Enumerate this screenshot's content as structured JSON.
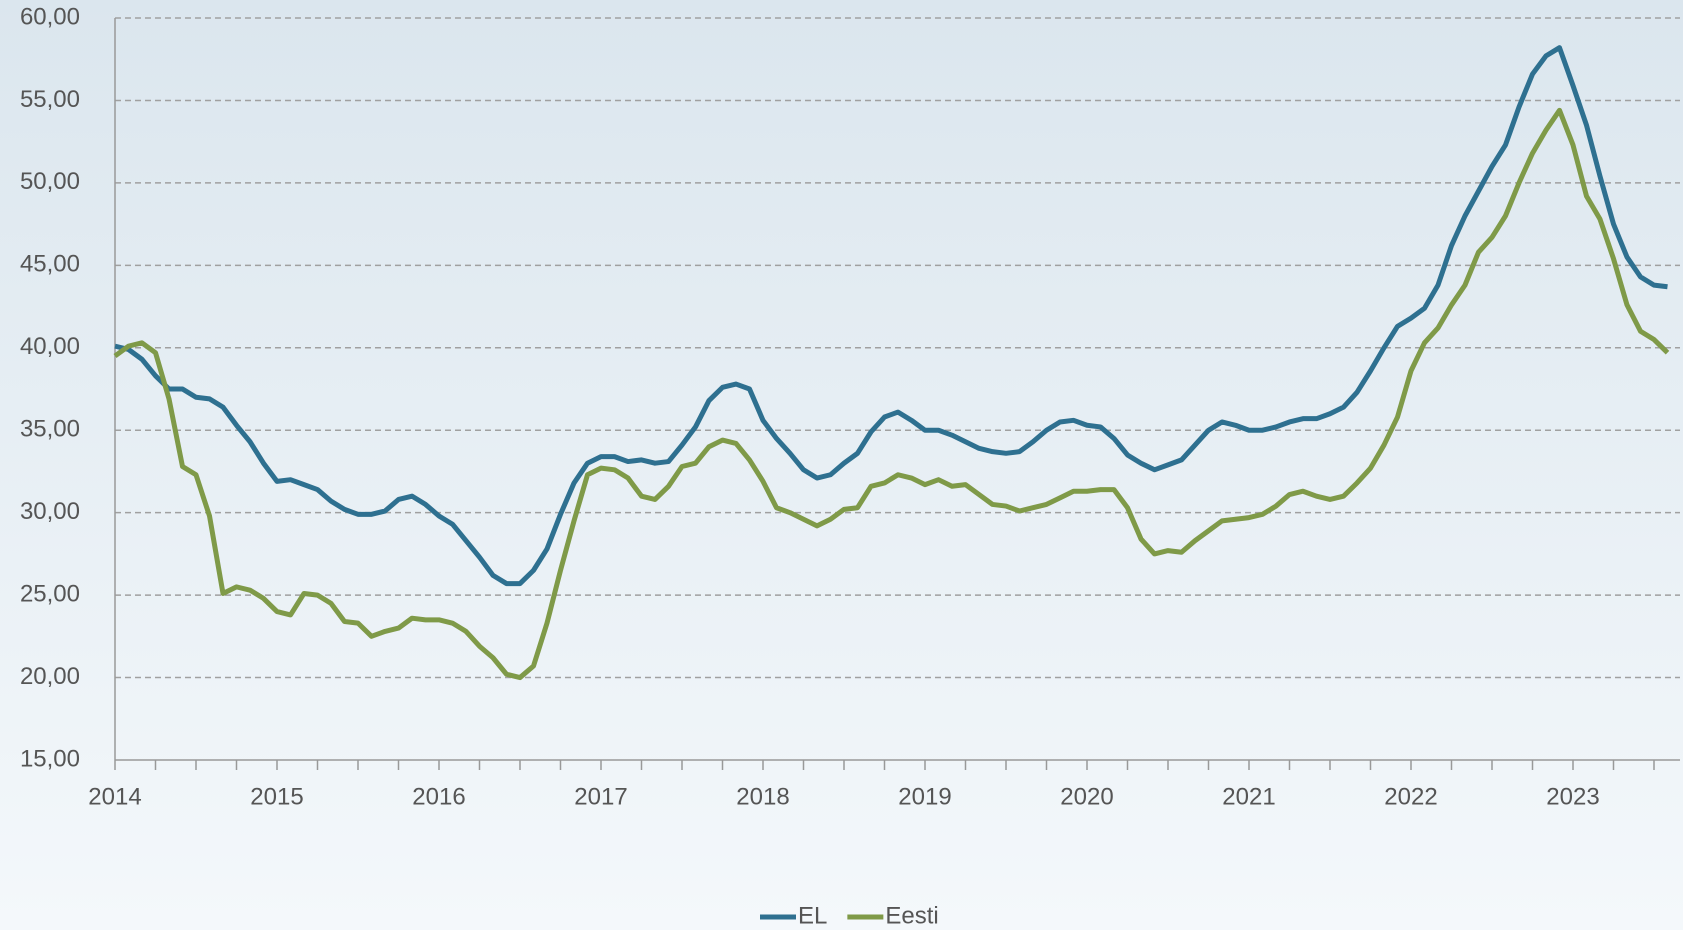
{
  "chart_data": {
    "type": "line",
    "categories": [
      "2014",
      null,
      null,
      null,
      null,
      null,
      null,
      null,
      null,
      null,
      null,
      null,
      "2015",
      null,
      null,
      null,
      null,
      null,
      null,
      null,
      null,
      null,
      null,
      null,
      "2016",
      null,
      null,
      null,
      null,
      null,
      null,
      null,
      null,
      null,
      null,
      null,
      "2017",
      null,
      null,
      null,
      null,
      null,
      null,
      null,
      null,
      null,
      null,
      null,
      "2018",
      null,
      null,
      null,
      null,
      null,
      null,
      null,
      null,
      null,
      null,
      null,
      "2019",
      null,
      null,
      null,
      null,
      null,
      null,
      null,
      null,
      null,
      null,
      null,
      "2020",
      null,
      null,
      null,
      null,
      null,
      null,
      null,
      null,
      null,
      null,
      null,
      "2021",
      null,
      null,
      null,
      null,
      null,
      null,
      null,
      null,
      null,
      null,
      null,
      "2022",
      null,
      null,
      null,
      null,
      null,
      null,
      null,
      null,
      null,
      null,
      null,
      "2023",
      null,
      null,
      null,
      null,
      null,
      null,
      null
    ],
    "series": [
      {
        "name": "EL",
        "color": "#2e7090",
        "values": [
          40.1,
          39.9,
          39.3,
          38.3,
          37.5,
          37.5,
          37.0,
          36.9,
          36.4,
          35.3,
          34.3,
          33.0,
          31.9,
          32.0,
          31.7,
          31.4,
          30.7,
          30.2,
          29.9,
          29.9,
          30.1,
          30.8,
          31.0,
          30.5,
          29.8,
          29.3,
          28.3,
          27.3,
          26.2,
          25.7,
          25.7,
          26.5,
          27.8,
          29.9,
          31.8,
          33.0,
          33.4,
          33.4,
          33.1,
          33.2,
          33.0,
          33.1,
          34.1,
          35.2,
          36.8,
          37.6,
          37.8,
          37.5,
          35.6,
          34.5,
          33.6,
          32.6,
          32.1,
          32.3,
          33.0,
          33.6,
          34.9,
          35.8,
          36.1,
          35.6,
          35.0,
          35.0,
          34.7,
          34.3,
          33.9,
          33.7,
          33.6,
          33.7,
          34.3,
          35.0,
          35.5,
          35.6,
          35.3,
          35.2,
          34.5,
          33.5,
          33.0,
          32.6,
          32.9,
          33.2,
          34.1,
          35.0,
          35.5,
          35.3,
          35.0,
          35.0,
          35.2,
          35.5,
          35.7,
          35.7,
          36.0,
          36.4,
          37.3,
          38.6,
          40.0,
          41.3,
          41.8,
          42.4,
          43.8,
          46.2,
          48.0,
          49.5,
          51.0,
          52.3,
          54.6,
          56.6,
          57.7,
          58.2,
          55.9,
          53.5,
          50.4,
          47.5,
          45.5,
          44.3,
          43.8,
          43.7
        ]
      },
      {
        "name": "Eesti",
        "color": "#7f9a48",
        "values": [
          39.5,
          40.1,
          40.3,
          39.7,
          36.9,
          32.8,
          32.3,
          29.8,
          25.1,
          25.5,
          25.3,
          24.8,
          24.0,
          23.8,
          25.1,
          25.0,
          24.5,
          23.4,
          23.3,
          22.5,
          22.8,
          23.0,
          23.6,
          23.5,
          23.5,
          23.3,
          22.8,
          21.9,
          21.2,
          20.2,
          20.0,
          20.7,
          23.3,
          26.5,
          29.5,
          32.3,
          32.7,
          32.6,
          32.1,
          31.0,
          30.8,
          31.6,
          32.8,
          33.0,
          34.0,
          34.4,
          34.2,
          33.2,
          31.9,
          30.3,
          30.0,
          29.6,
          29.2,
          29.6,
          30.2,
          30.3,
          31.6,
          31.8,
          32.3,
          32.1,
          31.7,
          32.0,
          31.6,
          31.7,
          31.1,
          30.5,
          30.4,
          30.1,
          30.3,
          30.5,
          30.9,
          31.3,
          31.3,
          31.4,
          31.4,
          30.3,
          28.4,
          27.5,
          27.7,
          27.6,
          28.3,
          28.9,
          29.5,
          29.6,
          29.7,
          29.9,
          30.4,
          31.1,
          31.3,
          31.0,
          30.8,
          31.0,
          31.8,
          32.7,
          34.1,
          35.8,
          38.6,
          40.3,
          41.2,
          42.6,
          43.8,
          45.8,
          46.7,
          48.0,
          50.0,
          51.8,
          53.2,
          54.4,
          52.3,
          49.2,
          47.8,
          45.4,
          42.6,
          41.0,
          40.5,
          39.7
        ]
      }
    ],
    "ylim": [
      15,
      60
    ],
    "yticks": [
      {
        "value": 15,
        "label": "15,00"
      },
      {
        "value": 20,
        "label": "20,00"
      },
      {
        "value": 25,
        "label": "25,00"
      },
      {
        "value": 30,
        "label": "30,00"
      },
      {
        "value": 35,
        "label": "35,00"
      },
      {
        "value": 40,
        "label": "40,00"
      },
      {
        "value": 45,
        "label": "45,00"
      },
      {
        "value": 50,
        "label": "50,00"
      },
      {
        "value": 55,
        "label": "55,00"
      },
      {
        "value": 60,
        "label": "60,00"
      }
    ],
    "grid": true,
    "legend": "bottom"
  }
}
